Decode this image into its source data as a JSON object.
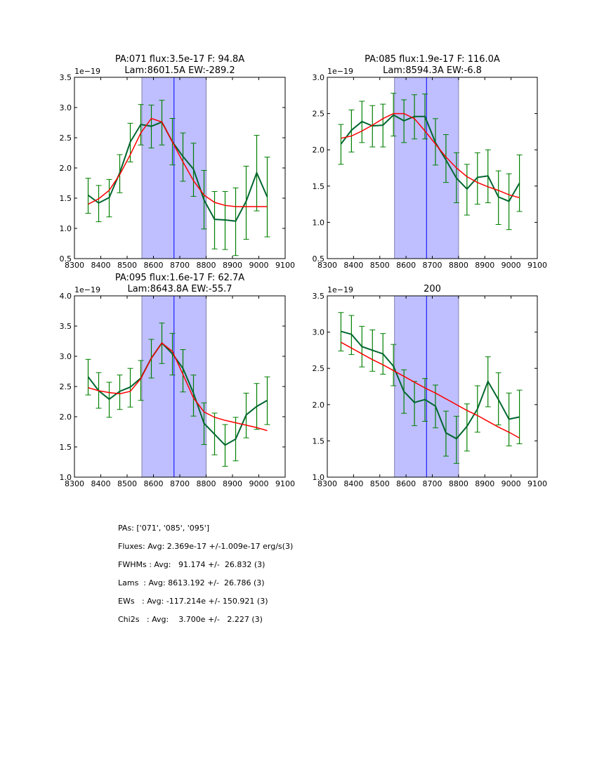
{
  "chart_data": [
    {
      "type": "line",
      "title_lines": [
        "PA:071 flux:3.5e-17 F: 94.8A",
        "Lam:8601.5A EW:-289.2"
      ],
      "xlim": [
        8300,
        9100
      ],
      "ylim": [
        0.5,
        3.5
      ],
      "y_scale_label": "1e−19",
      "xticks": [
        8300,
        8400,
        8500,
        8600,
        8700,
        8800,
        8900,
        9000,
        9100
      ],
      "yticks": [
        0.5,
        1.0,
        1.5,
        2.0,
        2.5,
        3.0,
        3.5
      ],
      "shaded_span": [
        8556,
        8800
      ],
      "vline": 8678,
      "x": [
        8352,
        8392,
        8432,
        8472,
        8512,
        8552,
        8592,
        8632,
        8672,
        8712,
        8752,
        8792,
        8832,
        8872,
        8912,
        8952,
        8992,
        9032
      ],
      "series": [
        {
          "name": "data",
          "color": "#00662e",
          "values": [
            1.55,
            1.42,
            1.51,
            1.92,
            2.43,
            2.72,
            2.69,
            2.76,
            2.43,
            2.19,
            1.98,
            1.47,
            1.15,
            1.14,
            1.12,
            1.45,
            1.92,
            1.52
          ],
          "err_upper": [
            1.83,
            1.71,
            1.81,
            2.22,
            2.74,
            3.05,
            3.04,
            3.12,
            2.82,
            2.58,
            2.41,
            1.96,
            1.61,
            1.61,
            1.67,
            2.03,
            2.54,
            2.18
          ],
          "err_lower": [
            1.25,
            1.11,
            1.19,
            1.59,
            2.1,
            2.38,
            2.33,
            2.38,
            2.05,
            1.78,
            1.53,
            0.99,
            0.66,
            0.65,
            0.55,
            0.82,
            1.29,
            0.86
          ]
        },
        {
          "name": "fit",
          "color": "#ff0000",
          "values": [
            1.4,
            1.49,
            1.63,
            1.89,
            2.22,
            2.58,
            2.82,
            2.76,
            2.43,
            2.1,
            1.79,
            1.55,
            1.43,
            1.38,
            1.36,
            1.36,
            1.36,
            1.36
          ]
        }
      ]
    },
    {
      "type": "line",
      "title_lines": [
        "PA:085 flux:1.9e-17 F: 116.0A",
        "Lam:8594.3A EW:-6.8"
      ],
      "xlim": [
        8300,
        9100
      ],
      "ylim": [
        0.5,
        3.0
      ],
      "y_scale_label": "1e−19",
      "xticks": [
        8300,
        8400,
        8500,
        8600,
        8700,
        8800,
        8900,
        9000,
        9100
      ],
      "yticks": [
        0.5,
        1.0,
        1.5,
        2.0,
        2.5,
        3.0
      ],
      "shaded_span": [
        8556,
        8800
      ],
      "vline": 8678,
      "x": [
        8352,
        8392,
        8432,
        8472,
        8512,
        8552,
        8592,
        8632,
        8672,
        8712,
        8752,
        8792,
        8832,
        8872,
        8912,
        8952,
        8992,
        9032
      ],
      "series": [
        {
          "name": "data",
          "color": "#00662e",
          "values": [
            2.08,
            2.27,
            2.39,
            2.33,
            2.34,
            2.48,
            2.4,
            2.46,
            2.46,
            2.1,
            1.86,
            1.61,
            1.46,
            1.62,
            1.64,
            1.35,
            1.29,
            1.54
          ],
          "err_upper": [
            2.35,
            2.55,
            2.67,
            2.61,
            2.63,
            2.78,
            2.69,
            2.76,
            2.77,
            2.43,
            2.21,
            1.96,
            1.8,
            1.96,
            2.0,
            1.71,
            1.67,
            1.93
          ],
          "err_lower": [
            1.8,
            1.97,
            2.1,
            2.04,
            2.04,
            2.19,
            2.1,
            2.15,
            2.15,
            1.79,
            1.55,
            1.27,
            1.1,
            1.25,
            1.27,
            0.97,
            0.9,
            1.15
          ]
        },
        {
          "name": "fit",
          "color": "#ff0000",
          "values": [
            2.16,
            2.19,
            2.26,
            2.34,
            2.43,
            2.5,
            2.5,
            2.43,
            2.26,
            2.08,
            1.9,
            1.75,
            1.63,
            1.55,
            1.49,
            1.44,
            1.38,
            1.34
          ]
        }
      ]
    },
    {
      "type": "line",
      "title_lines": [
        "PA:095 flux:1.6e-17 F: 62.7A",
        "Lam:8643.8A EW:-55.7"
      ],
      "xlim": [
        8300,
        9100
      ],
      "ylim": [
        1.0,
        4.0
      ],
      "y_scale_label": "1e−19",
      "xticks": [
        8300,
        8400,
        8500,
        8600,
        8700,
        8800,
        8900,
        9000,
        9100
      ],
      "yticks": [
        1.0,
        1.5,
        2.0,
        2.5,
        3.0,
        3.5,
        4.0
      ],
      "shaded_span": [
        8556,
        8800
      ],
      "vline": 8678,
      "x": [
        8352,
        8392,
        8432,
        8472,
        8512,
        8552,
        8592,
        8632,
        8672,
        8712,
        8752,
        8792,
        8832,
        8872,
        8912,
        8952,
        8992,
        9032
      ],
      "series": [
        {
          "name": "data",
          "color": "#00662e",
          "values": [
            2.66,
            2.43,
            2.29,
            2.42,
            2.49,
            2.64,
            2.97,
            3.22,
            3.04,
            2.8,
            2.39,
            1.89,
            1.71,
            1.53,
            1.63,
            2.03,
            2.17,
            2.27
          ],
          "err_upper": [
            2.95,
            2.73,
            2.57,
            2.69,
            2.8,
            2.93,
            3.28,
            3.55,
            3.38,
            3.11,
            2.69,
            2.23,
            2.06,
            1.87,
            1.99,
            2.39,
            2.55,
            2.66
          ],
          "err_lower": [
            2.36,
            2.14,
            1.99,
            2.12,
            2.16,
            2.27,
            2.64,
            2.88,
            2.69,
            2.41,
            2.01,
            1.54,
            1.37,
            1.18,
            1.27,
            1.65,
            1.79,
            1.87
          ]
        },
        {
          "name": "fit",
          "color": "#ff0000",
          "values": [
            2.48,
            2.43,
            2.4,
            2.38,
            2.42,
            2.63,
            2.97,
            3.22,
            3.08,
            2.7,
            2.31,
            2.08,
            1.99,
            1.94,
            1.9,
            1.86,
            1.82,
            1.77
          ]
        }
      ]
    },
    {
      "type": "line",
      "title_lines": [
        "200"
      ],
      "xlim": [
        8300,
        9100
      ],
      "ylim": [
        1.0,
        3.5
      ],
      "y_scale_label": "1e−19",
      "xticks": [
        8300,
        8400,
        8500,
        8600,
        8700,
        8800,
        8900,
        9000,
        9100
      ],
      "yticks": [
        1.0,
        1.5,
        2.0,
        2.5,
        3.0,
        3.5
      ],
      "shaded_span": [
        8556,
        8800
      ],
      "vline": 8678,
      "x": [
        8352,
        8392,
        8432,
        8472,
        8512,
        8552,
        8592,
        8632,
        8672,
        8712,
        8752,
        8792,
        8832,
        8872,
        8912,
        8952,
        8992,
        9032
      ],
      "series": [
        {
          "name": "data",
          "color": "#00662e",
          "values": [
            3.01,
            2.97,
            2.8,
            2.75,
            2.7,
            2.53,
            2.18,
            2.03,
            2.07,
            1.98,
            1.61,
            1.53,
            1.7,
            1.94,
            2.32,
            2.07,
            1.8,
            1.83
          ],
          "err_upper": [
            3.27,
            3.23,
            3.08,
            3.03,
            2.98,
            2.83,
            2.48,
            2.32,
            2.36,
            2.27,
            1.91,
            1.84,
            2.01,
            2.26,
            2.66,
            2.44,
            2.16,
            2.2
          ],
          "err_lower": [
            2.74,
            2.69,
            2.52,
            2.46,
            2.42,
            2.26,
            1.88,
            1.71,
            1.77,
            1.68,
            1.29,
            1.19,
            1.36,
            1.62,
            1.97,
            1.72,
            1.43,
            1.46
          ]
        },
        {
          "name": "fit",
          "color": "#ff0000",
          "values": [
            2.86,
            2.78,
            2.7,
            2.62,
            2.55,
            2.47,
            2.39,
            2.31,
            2.23,
            2.16,
            2.08,
            2.0,
            1.92,
            1.85,
            1.77,
            1.69,
            1.62,
            1.54
          ]
        }
      ]
    }
  ],
  "colors": {
    "errorbar": "#008000",
    "span_fill": "#bfbfff",
    "span_edge": "#8080b0",
    "vline": "#0000ff"
  },
  "stats": {
    "pas": "PAs: ['071', '085', '095']",
    "fluxes": "Fluxes: Avg: 2.369e-17 +/-1.009e-17 erg/s(3)",
    "fwhms": "FWHMs : Avg:   91.174 +/-  26.832 (3)",
    "lams": "Lams  : Avg: 8613.192 +/-  26.786 (3)",
    "ews": "EWs   : Avg: -117.214e +/- 150.921 (3)",
    "chi2s": "Chi2s   : Avg:    3.700e +/-   2.227 (3)"
  }
}
